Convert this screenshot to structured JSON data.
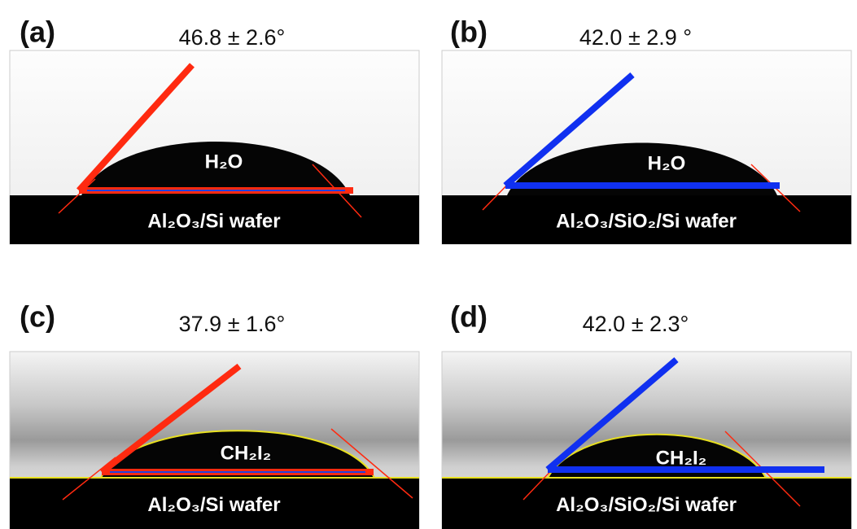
{
  "panels": [
    {
      "label": "(a)",
      "angle": "46.8 ± 2.6°",
      "liquid": "H₂O",
      "substrate": "Al₂O₃/Si wafer"
    },
    {
      "label": "(b)",
      "angle": "42.0 ± 2.9 °",
      "liquid": "H₂O",
      "substrate": "Al₂O₃/SiO₂/Si wafer"
    },
    {
      "label": "(c)",
      "angle": "37.9 ± 1.6°",
      "liquid": "CH₂I₂",
      "substrate": "Al₂O₃/Si wafer"
    },
    {
      "label": "(d)",
      "angle": "42.0 ± 2.3°",
      "liquid": "CH₂I₂",
      "substrate": "Al₂O₃/SiO₂/Si wafer"
    }
  ]
}
